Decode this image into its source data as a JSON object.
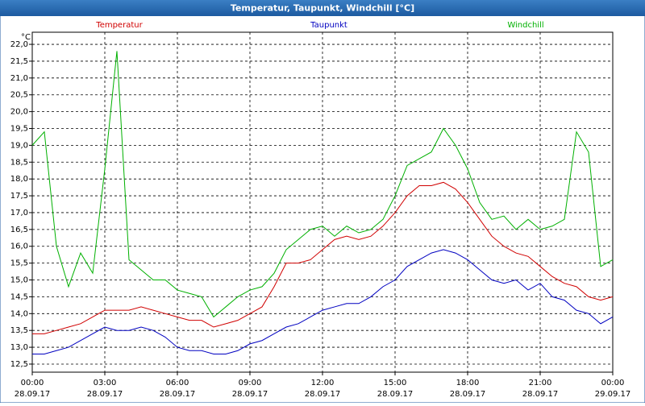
{
  "window_title": "Temperatur, Taupunkt, Windchill [°C]",
  "chart_data": {
    "type": "line",
    "unit_label": "°C",
    "x": [
      0,
      0.5,
      1,
      1.5,
      2,
      2.5,
      3,
      3.5,
      4,
      4.5,
      5,
      5.5,
      6,
      6.5,
      7,
      7.5,
      8,
      8.5,
      9,
      9.5,
      10,
      10.5,
      11,
      11.5,
      12,
      12.5,
      13,
      13.5,
      14,
      14.5,
      15,
      15.5,
      16,
      16.5,
      17,
      17.5,
      18,
      18.5,
      19,
      19.5,
      20,
      20.5,
      21,
      21.5,
      22,
      22.5,
      23,
      23.5,
      24
    ],
    "series": [
      {
        "name": "Temperatur",
        "color": "#d00000",
        "values": [
          13.4,
          13.4,
          13.5,
          13.6,
          13.7,
          13.9,
          14.1,
          14.1,
          14.1,
          14.2,
          14.1,
          14.0,
          13.9,
          13.8,
          13.8,
          13.6,
          13.7,
          13.8,
          14.0,
          14.2,
          14.8,
          15.5,
          15.5,
          15.6,
          15.9,
          16.2,
          16.3,
          16.2,
          16.3,
          16.6,
          17.0,
          17.5,
          17.8,
          17.8,
          17.9,
          17.7,
          17.3,
          16.8,
          16.3,
          16.0,
          15.8,
          15.7,
          15.4,
          15.1,
          14.9,
          14.8,
          14.5,
          14.4,
          14.5
        ]
      },
      {
        "name": "Taupunkt",
        "color": "#0000c0",
        "values": [
          12.8,
          12.8,
          12.9,
          13.0,
          13.2,
          13.4,
          13.6,
          13.5,
          13.5,
          13.6,
          13.5,
          13.3,
          13.0,
          12.9,
          12.9,
          12.8,
          12.8,
          12.9,
          13.1,
          13.2,
          13.4,
          13.6,
          13.7,
          13.9,
          14.1,
          14.2,
          14.3,
          14.3,
          14.5,
          14.8,
          15.0,
          15.4,
          15.6,
          15.8,
          15.9,
          15.8,
          15.6,
          15.3,
          15.0,
          14.9,
          15.0,
          14.7,
          14.9,
          14.5,
          14.4,
          14.1,
          14.0,
          13.7,
          13.9
        ]
      },
      {
        "name": "Windchill",
        "color": "#00b000",
        "values": [
          19.0,
          19.4,
          16.0,
          14.8,
          15.8,
          15.2,
          18.3,
          21.8,
          15.6,
          15.3,
          15.0,
          15.0,
          14.7,
          14.6,
          14.5,
          13.9,
          14.2,
          14.5,
          14.7,
          14.8,
          15.2,
          15.9,
          16.2,
          16.5,
          16.6,
          16.3,
          16.6,
          16.4,
          16.5,
          16.8,
          17.5,
          18.4,
          18.6,
          18.8,
          19.5,
          19.0,
          18.3,
          17.3,
          16.8,
          16.9,
          16.5,
          16.8,
          16.5,
          16.6,
          16.8,
          19.4,
          18.8,
          15.4,
          15.6
        ]
      }
    ],
    "xlim": [
      0,
      24
    ],
    "xticks": [
      {
        "value": 0,
        "label": "00:00 28.09.17"
      },
      {
        "value": 3,
        "label": "03:00 28.09.17"
      },
      {
        "value": 6,
        "label": "06:00 28.09.17"
      },
      {
        "value": 9,
        "label": "09:00 28.09.17"
      },
      {
        "value": 12,
        "label": "12:00 28.09.17"
      },
      {
        "value": 15,
        "label": "15:00 28.09.17"
      },
      {
        "value": 18,
        "label": "18:00 28.09.17"
      },
      {
        "value": 21,
        "label": "21:00 28.09.17"
      },
      {
        "value": 24,
        "label": "00:00 29.09.17"
      }
    ],
    "ylim": [
      12.26,
      22.36
    ],
    "yticks": [
      {
        "value": 12.5,
        "label": "12,5"
      },
      {
        "value": 13,
        "label": "13,0"
      },
      {
        "value": 13.5,
        "label": "13,5"
      },
      {
        "value": 14,
        "label": "14,0"
      },
      {
        "value": 14.5,
        "label": "14,5"
      },
      {
        "value": 15,
        "label": "15,0"
      },
      {
        "value": 15.5,
        "label": "15,5"
      },
      {
        "value": 16,
        "label": "16,0"
      },
      {
        "value": 16.5,
        "label": "16,5"
      },
      {
        "value": 17,
        "label": "17,0"
      },
      {
        "value": 17.5,
        "label": "17,5"
      },
      {
        "value": 18,
        "label": "18,0"
      },
      {
        "value": 18.5,
        "label": "18,5"
      },
      {
        "value": 19,
        "label": "19,0"
      },
      {
        "value": 19.5,
        "label": "19,5"
      },
      {
        "value": 20,
        "label": "20,0"
      },
      {
        "value": 20.5,
        "label": "20,5"
      },
      {
        "value": 21,
        "label": "21,0"
      },
      {
        "value": 21.5,
        "label": "21,5"
      },
      {
        "value": 22,
        "label": "22,0"
      }
    ],
    "grid": true
  }
}
